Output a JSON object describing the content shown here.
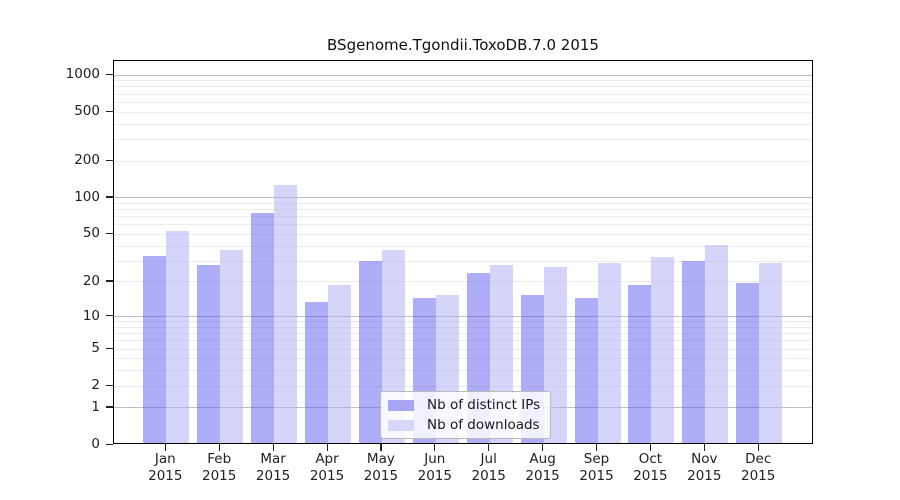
{
  "chart_data": {
    "type": "bar",
    "title": "BSgenome.Tgondii.ToxoDB.7.0 2015",
    "categories": [
      "Jan 2015",
      "Feb 2015",
      "Mar 2015",
      "Apr 2015",
      "May 2015",
      "Jun 2015",
      "Jul 2015",
      "Aug 2015",
      "Sep 2015",
      "Oct 2015",
      "Nov 2015",
      "Dec 2015"
    ],
    "x_tick_labels": [
      {
        "month": "Jan",
        "year": "2015"
      },
      {
        "month": "Feb",
        "year": "2015"
      },
      {
        "month": "Mar",
        "year": "2015"
      },
      {
        "month": "Apr",
        "year": "2015"
      },
      {
        "month": "May",
        "year": "2015"
      },
      {
        "month": "Jun",
        "year": "2015"
      },
      {
        "month": "Jul",
        "year": "2015"
      },
      {
        "month": "Aug",
        "year": "2015"
      },
      {
        "month": "Sep",
        "year": "2015"
      },
      {
        "month": "Oct",
        "year": "2015"
      },
      {
        "month": "Nov",
        "year": "2015"
      },
      {
        "month": "Dec",
        "year": "2015"
      }
    ],
    "series": [
      {
        "name": "Nb of distinct IPs",
        "values": [
          32,
          27,
          73,
          13,
          29,
          14,
          23,
          15,
          14,
          18,
          29,
          19
        ],
        "bar_color": "rgba(92,92,242,0.50)",
        "legend_color": "#A6A6F2"
      },
      {
        "name": "Nb of downloads",
        "values": [
          51,
          36,
          122,
          18,
          36,
          15,
          27,
          26,
          28,
          31,
          39,
          28
        ],
        "bar_color": "rgba(178,178,246,0.55)",
        "legend_color": "#D7D7F8"
      }
    ],
    "y_axis": {
      "scale": "log1p",
      "tick_values": [
        0,
        1,
        2,
        5,
        10,
        20,
        50,
        100,
        200,
        500,
        1000
      ],
      "tick_labels": [
        "0",
        "1",
        "2",
        "5",
        "10",
        "20",
        "50",
        "100",
        "200",
        "500",
        "1000"
      ],
      "ylim": [
        0,
        1000
      ]
    },
    "grid": {
      "major_values": [
        1,
        10,
        100,
        1000
      ],
      "minor_values": [
        2,
        3,
        4,
        5,
        6,
        7,
        8,
        9,
        20,
        30,
        40,
        50,
        60,
        70,
        80,
        90,
        200,
        300,
        400,
        500,
        600,
        700,
        800,
        900
      ],
      "major_color": "#bdbdbd",
      "minor_color": "#ebebeb"
    },
    "legend": {
      "position": "bottom-center",
      "items": [
        "Nb of distinct IPs",
        "Nb of downloads"
      ]
    }
  }
}
